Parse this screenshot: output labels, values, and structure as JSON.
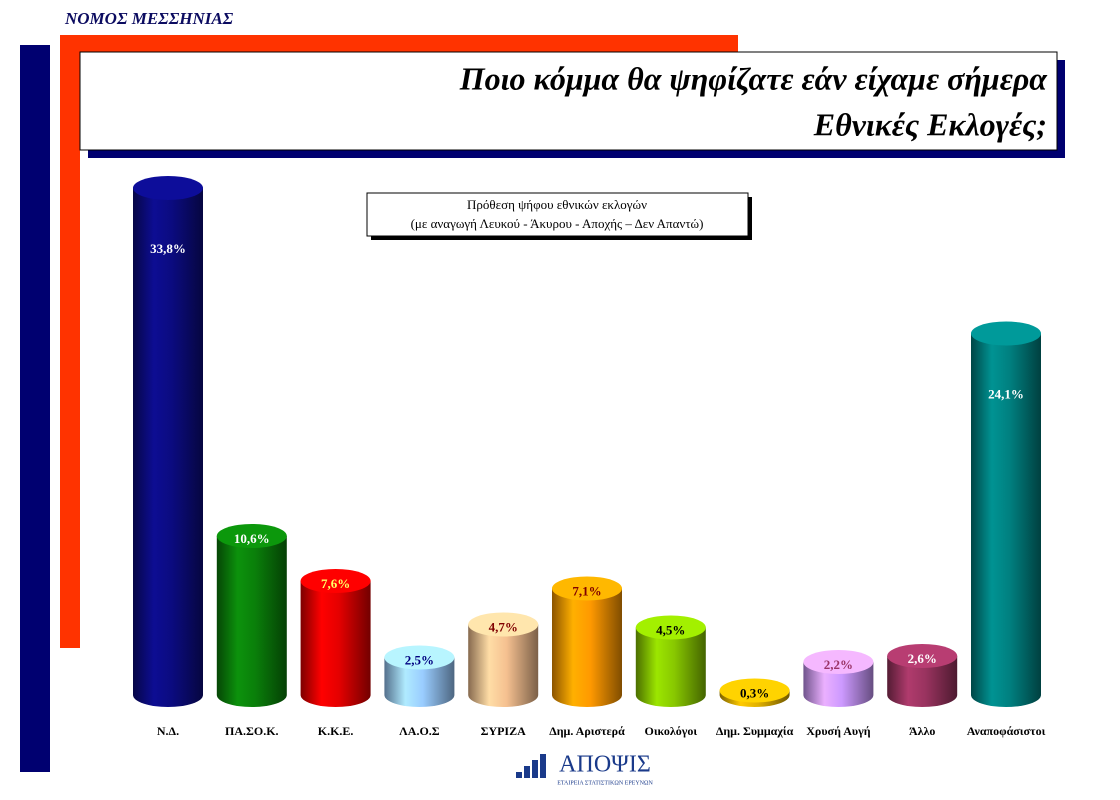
{
  "header": "ΝΟΜΟΣ ΜΕΣΣΗΝΙΑΣ",
  "chart_data": {
    "type": "cylinder",
    "title": [
      "Ποιο κόμμα θα ψηφίζατε εάν είχαμε σήμερα",
      "Εθνικές Εκλογές;"
    ],
    "annotation": [
      "Πρόθεση ψήφου εθνικών εκλογών",
      "(με αναγωγή Λευκού - Άκυρου - Αποχής – Δεν Απαντώ)"
    ],
    "categories": [
      "Ν.Δ.",
      "ΠΑ.ΣΟ.Κ.",
      "Κ.Κ.Ε.",
      "ΛΑ.Ο.Σ",
      "ΣΥΡΙΖΑ",
      "Δημ. Αριστερά",
      "Οικολόγοι",
      "Δημ. Συμμαχία",
      "Χρυσή Αυγή",
      "Άλλο",
      "Αναποφάσιστοι"
    ],
    "values": [
      33.8,
      10.6,
      7.6,
      2.5,
      4.7,
      7.1,
      4.5,
      0.3,
      2.2,
      2.6,
      24.1
    ],
    "value_labels": [
      "33,8%",
      "10,6%",
      "7,6%",
      "2,5%",
      "4,7%",
      "7,1%",
      "4,5%",
      "0,3%",
      "2,2%",
      "2,6%",
      "24,1%"
    ],
    "colors": [
      "#0b0b80",
      "#0a7f0a",
      "#e40000",
      "#99ccff",
      "#f5c090",
      "#ff9900",
      "#88c800",
      "#e0b000",
      "#cc99ff",
      "#99335f",
      "#008080"
    ],
    "label_colors": [
      "#ffffff",
      "#ffffff",
      "#ffff66",
      "#000080",
      "#800000",
      "#800000",
      "#000000",
      "#000000",
      "#993366",
      "#ffffff",
      "#ffffff"
    ]
  },
  "logo": {
    "name": "ΑΠΟΨΙΣ",
    "tagline": "ΕΤΑΙΡΕΙΑ ΣΤΑΤΙΣΤΙΚΩΝ ΕΡΕΥΝΩΝ"
  }
}
